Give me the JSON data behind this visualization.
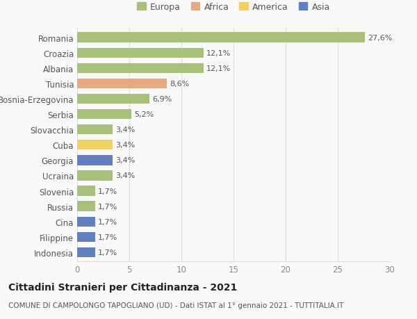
{
  "countries": [
    "Romania",
    "Croazia",
    "Albania",
    "Tunisia",
    "Bosnia-Erzegovina",
    "Serbia",
    "Slovacchia",
    "Cuba",
    "Georgia",
    "Ucraina",
    "Slovenia",
    "Russia",
    "Cina",
    "Filippine",
    "Indonesia"
  ],
  "values": [
    27.6,
    12.1,
    12.1,
    8.6,
    6.9,
    5.2,
    3.4,
    3.4,
    3.4,
    3.4,
    1.7,
    1.7,
    1.7,
    1.7,
    1.7
  ],
  "labels": [
    "27,6%",
    "12,1%",
    "12,1%",
    "8,6%",
    "6,9%",
    "5,2%",
    "3,4%",
    "3,4%",
    "3,4%",
    "3,4%",
    "1,7%",
    "1,7%",
    "1,7%",
    "1,7%",
    "1,7%"
  ],
  "continents": [
    "Europa",
    "Europa",
    "Europa",
    "Africa",
    "Europa",
    "Europa",
    "Europa",
    "America",
    "Asia",
    "Europa",
    "Europa",
    "Europa",
    "Asia",
    "Asia",
    "Asia"
  ],
  "colors": {
    "Europa": "#a8c07a",
    "Africa": "#e8a882",
    "America": "#f0d060",
    "Asia": "#6080c0"
  },
  "legend_order": [
    "Europa",
    "Africa",
    "America",
    "Asia"
  ],
  "title": "Cittadini Stranieri per Cittadinanza - 2021",
  "subtitle": "COMUNE DI CAMPOLONGO TAPOGLIANO (UD) - Dati ISTAT al 1° gennaio 2021 - TUTTITALIA.IT",
  "xlim": [
    0,
    30
  ],
  "xticks": [
    0,
    5,
    10,
    15,
    20,
    25,
    30
  ],
  "bg_color": "#f9f9f9",
  "bar_height": 0.65,
  "grid_color": "#dddddd",
  "title_fontsize": 10,
  "subtitle_fontsize": 7.5,
  "label_fontsize": 8,
  "ytick_fontsize": 8.5,
  "xtick_fontsize": 8.5,
  "legend_fontsize": 9
}
